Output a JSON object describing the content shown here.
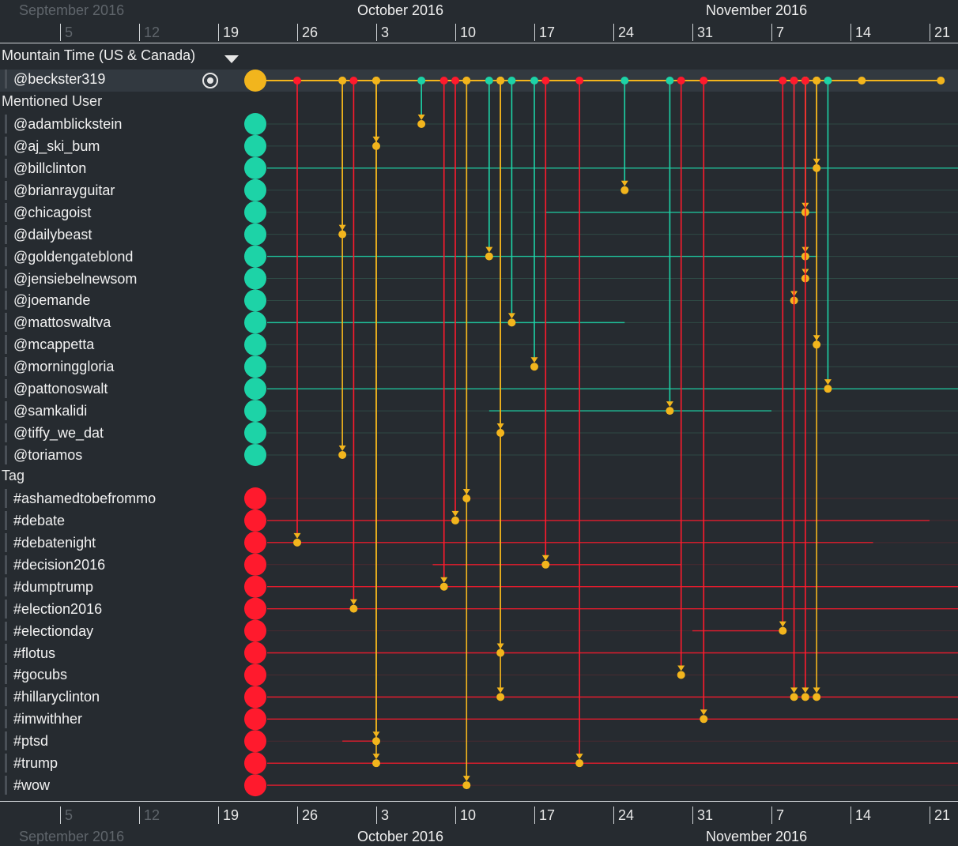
{
  "axis": {
    "months": [
      {
        "label": "September 2016",
        "faded": true
      },
      {
        "label": "October 2016",
        "faded": false
      },
      {
        "label": "November 2016",
        "faded": false
      }
    ],
    "ticks": [
      {
        "label": "5",
        "faded": true
      },
      {
        "label": "12",
        "faded": true
      },
      {
        "label": "19",
        "faded": false
      },
      {
        "label": "26",
        "faded": false
      },
      {
        "label": "3",
        "faded": false
      },
      {
        "label": "10",
        "faded": false
      },
      {
        "label": "17",
        "faded": false
      },
      {
        "label": "24",
        "faded": false
      },
      {
        "label": "31",
        "faded": false
      },
      {
        "label": "7",
        "faded": false
      },
      {
        "label": "14",
        "faded": false
      },
      {
        "label": "21",
        "faded": false
      }
    ]
  },
  "timezone": {
    "label": "Mountain Time (US & Canada)"
  },
  "colors": {
    "user": "#f2b51d",
    "mention": "#1dd3a7",
    "tag": "#ff1a2d",
    "background": "#262b30"
  },
  "user": {
    "label": "@beckster319",
    "icon": "target-icon"
  },
  "sections": {
    "mentioned": "Mentioned User",
    "tag": "Tag"
  },
  "mentions": [
    {
      "label": "@adamblickstein"
    },
    {
      "label": "@aj_ski_bum"
    },
    {
      "label": "@billclinton"
    },
    {
      "label": "@brianrayguitar"
    },
    {
      "label": "@chicagoist"
    },
    {
      "label": "@dailybeast"
    },
    {
      "label": "@goldengateblond"
    },
    {
      "label": "@jensiebelnewsom"
    },
    {
      "label": "@joemande"
    },
    {
      "label": "@mattoswaltva"
    },
    {
      "label": "@mcappetta"
    },
    {
      "label": "@morninggloria"
    },
    {
      "label": "@pattonoswalt"
    },
    {
      "label": "@samkalidi"
    },
    {
      "label": "@tiffy_we_dat"
    },
    {
      "label": "@toriamos"
    }
  ],
  "tags": [
    {
      "label": "#ashamedtobefrommo"
    },
    {
      "label": "#debate"
    },
    {
      "label": "#debatenight"
    },
    {
      "label": "#decision2016"
    },
    {
      "label": "#dumptrump"
    },
    {
      "label": "#election2016"
    },
    {
      "label": "#electionday"
    },
    {
      "label": "#flotus"
    },
    {
      "label": "#gocubs"
    },
    {
      "label": "#hillaryclinton"
    },
    {
      "label": "#imwithher"
    },
    {
      "label": "#ptsd"
    },
    {
      "label": "#trump"
    },
    {
      "label": "#wow"
    }
  ],
  "events": [
    {
      "date": "2016-09-26",
      "type": "tag",
      "row": "#debatenight"
    },
    {
      "date": "2016-09-30",
      "type": "user",
      "row": "@dailybeast"
    },
    {
      "date": "2016-09-30",
      "type": "user",
      "row": "@toriamos"
    },
    {
      "date": "2016-10-01",
      "type": "tag",
      "row": "#election2016"
    },
    {
      "date": "2016-10-03",
      "type": "user",
      "row": "@aj_ski_bum"
    },
    {
      "date": "2016-10-03",
      "type": "user",
      "row": "#ptsd"
    },
    {
      "date": "2016-10-03",
      "type": "user",
      "row": "#trump"
    },
    {
      "date": "2016-10-07",
      "type": "mention",
      "row": "@adamblickstein"
    },
    {
      "date": "2016-10-09",
      "type": "tag",
      "row": "#dumptrump"
    },
    {
      "date": "2016-10-10",
      "type": "tag",
      "row": "#debate"
    },
    {
      "date": "2016-10-11",
      "type": "user",
      "row": "#ashamedtobefrommo"
    },
    {
      "date": "2016-10-11",
      "type": "user",
      "row": "#wow"
    },
    {
      "date": "2016-10-13",
      "type": "mention",
      "row": "@goldengateblond"
    },
    {
      "date": "2016-10-14",
      "type": "user",
      "row": "@tiffy_we_dat"
    },
    {
      "date": "2016-10-14",
      "type": "user",
      "row": "#flotus"
    },
    {
      "date": "2016-10-14",
      "type": "user",
      "row": "#hillaryclinton"
    },
    {
      "date": "2016-10-15",
      "type": "mention",
      "row": "@mattoswaltva"
    },
    {
      "date": "2016-10-17",
      "type": "mention",
      "row": "@morninggloria"
    },
    {
      "date": "2016-10-18",
      "type": "tag",
      "row": "#decision2016"
    },
    {
      "date": "2016-10-21",
      "type": "tag",
      "row": "#trump"
    },
    {
      "date": "2016-10-25",
      "type": "mention",
      "row": "@brianrayguitar"
    },
    {
      "date": "2016-10-29",
      "type": "mention",
      "row": "@samkalidi"
    },
    {
      "date": "2016-10-30",
      "type": "tag",
      "row": "#gocubs"
    },
    {
      "date": "2016-11-01",
      "type": "tag",
      "row": "#imwithher"
    },
    {
      "date": "2016-11-08",
      "type": "tag",
      "row": "#electionday"
    },
    {
      "date": "2016-11-09",
      "type": "mention",
      "row": "@joemande"
    },
    {
      "date": "2016-11-09",
      "type": "tag",
      "row": "#hillaryclinton"
    },
    {
      "date": "2016-11-10",
      "type": "mention",
      "row": "@goldengateblond"
    },
    {
      "date": "2016-11-10",
      "type": "user",
      "row": "@chicagoist"
    },
    {
      "date": "2016-11-10",
      "type": "user",
      "row": "@jensiebelnewsom"
    },
    {
      "date": "2016-11-10",
      "type": "tag",
      "row": "#hillaryclinton"
    },
    {
      "date": "2016-11-11",
      "type": "user",
      "row": "@billclinton"
    },
    {
      "date": "2016-11-11",
      "type": "user",
      "row": "@mcappetta"
    },
    {
      "date": "2016-11-11",
      "type": "user",
      "row": "#hillaryclinton"
    },
    {
      "date": "2016-11-12",
      "type": "mention",
      "row": "@pattonoswalt"
    },
    {
      "date": "2016-11-15",
      "type": "user",
      "row": ""
    },
    {
      "date": "2016-11-22",
      "type": "user",
      "row": ""
    }
  ],
  "activity_spans": [
    {
      "row": "@billclinton",
      "from": "2016-09-23",
      "to": "2016-11-25",
      "type": "mention"
    },
    {
      "row": "@chicagoist",
      "from": "2016-10-18",
      "to": "2016-11-11",
      "type": "mention"
    },
    {
      "row": "@goldengateblond",
      "from": "2016-09-23",
      "to": "2016-11-11",
      "type": "mention"
    },
    {
      "row": "@mattoswaltva",
      "from": "2016-09-23",
      "to": "2016-10-25",
      "type": "mention"
    },
    {
      "row": "@pattonoswalt",
      "from": "2016-09-23",
      "to": "2016-11-25",
      "type": "mention"
    },
    {
      "row": "@samkalidi",
      "from": "2016-10-13",
      "to": "2016-11-07",
      "type": "mention"
    },
    {
      "row": "#debate",
      "from": "2016-09-23",
      "to": "2016-11-21",
      "type": "tag"
    },
    {
      "row": "#debatenight",
      "from": "2016-09-23",
      "to": "2016-11-16",
      "type": "tag"
    },
    {
      "row": "#decision2016",
      "from": "2016-10-08",
      "to": "2016-10-30",
      "type": "tag"
    },
    {
      "row": "#dumptrump",
      "from": "2016-09-23",
      "to": "2016-11-25",
      "type": "tag"
    },
    {
      "row": "#election2016",
      "from": "2016-09-23",
      "to": "2016-11-25",
      "type": "tag"
    },
    {
      "row": "#electionday",
      "from": "2016-10-31",
      "to": "2016-11-08",
      "type": "tag"
    },
    {
      "row": "#flotus",
      "from": "2016-09-23",
      "to": "2016-11-25",
      "type": "tag"
    },
    {
      "row": "#hillaryclinton",
      "from": "2016-09-23",
      "to": "2016-11-25",
      "type": "tag"
    },
    {
      "row": "#imwithher",
      "from": "2016-09-23",
      "to": "2016-11-25",
      "type": "tag"
    },
    {
      "row": "#ptsd",
      "from": "2016-09-30",
      "to": "2016-10-03",
      "type": "tag"
    },
    {
      "row": "#trump",
      "from": "2016-09-23",
      "to": "2016-11-25",
      "type": "tag"
    },
    {
      "row": "#wow",
      "from": "2016-09-23",
      "to": "2016-10-11",
      "type": "tag"
    }
  ]
}
